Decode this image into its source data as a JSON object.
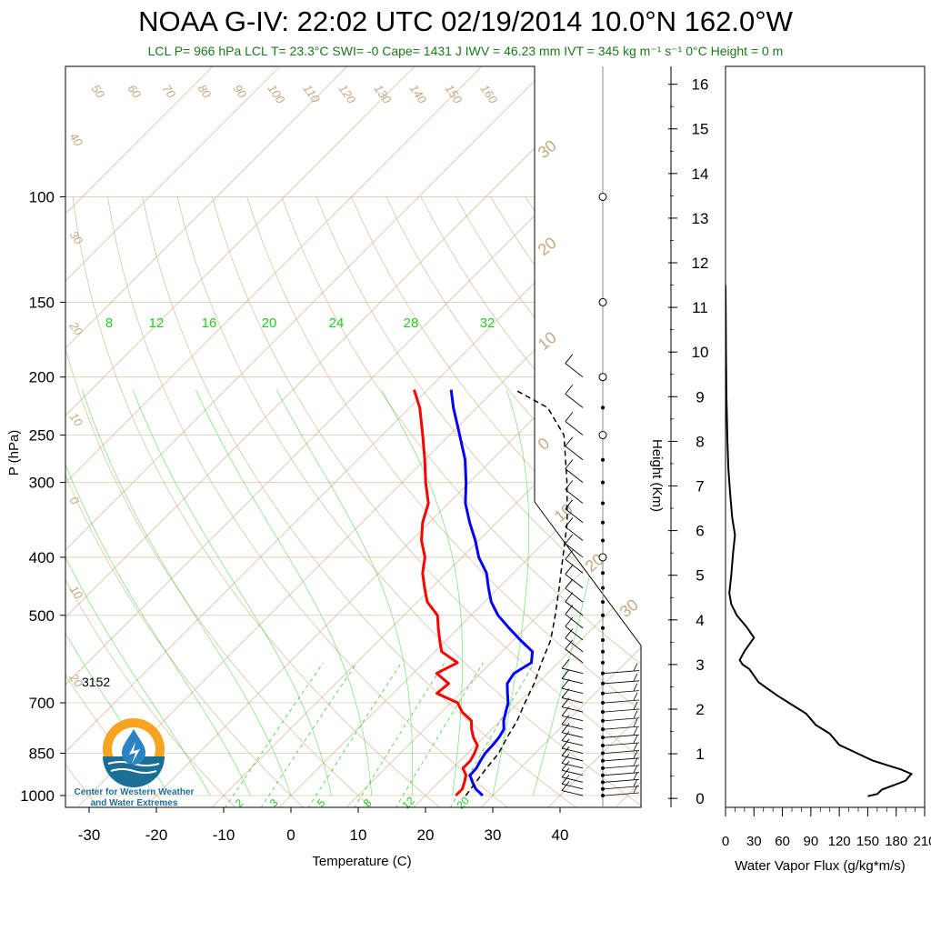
{
  "header": {
    "title": "NOAA G-IV: 22:02 UTC 02/19/2014  10.0°N 162.0°W",
    "subtitle": "LCL P= 966 hPa  LCL T= 23.3°C  SWI= -0  Cape= 1431 J  IWV = 46.23 mm  IVT = 345 kg m⁻¹ s⁻¹  0°C Height = 0 m"
  },
  "logo": {
    "text_line1": "Center for Western Weather",
    "text_line2": "and Water Extremes"
  },
  "colors": {
    "temperature": "#ff0000",
    "dewpoint": "#0000ff",
    "parcel": "#000000",
    "isotherm": "#d2b48c",
    "mixing_ratio": "#00cc00",
    "wind": "#000000",
    "flux": "#000000"
  },
  "chart_data": [
    {
      "type": "line",
      "subtype": "skew-T log-P",
      "xlabel": "Temperature (C)",
      "ylabel": "P (hPa)",
      "x_ticks": [
        -30,
        -20,
        -10,
        0,
        10,
        20,
        30,
        40
      ],
      "y_ticks": [
        100,
        150,
        200,
        250,
        300,
        400,
        500,
        700,
        850,
        1000
      ],
      "xlim": [
        -35,
        50
      ],
      "ylim": [
        1050,
        100
      ],
      "annotation": "3152",
      "dry_adiabat_labels": [
        "50",
        "60",
        "70",
        "80",
        "90",
        "100",
        "110",
        "120",
        "130",
        "140",
        "150",
        "160",
        "40",
        "30",
        "20",
        "10",
        "0",
        "10",
        "20"
      ],
      "mixing_ratio_top_labels": [
        "8",
        "12",
        "16",
        "20",
        "24",
        "28",
        "32"
      ],
      "mixing_ratio_bottom_labels": [
        "2",
        "3",
        "5",
        "8",
        "12",
        "20"
      ],
      "skewed_temp_labels": [
        "30",
        "20",
        "10",
        "0",
        "10",
        "20",
        "30"
      ],
      "series": [
        {
          "name": "",
          "points": [
            [
              24.5,
              1000
            ],
            [
              24.5,
              975
            ],
            [
              23.8,
              950
            ],
            [
              23.0,
              925
            ],
            [
              21.5,
              900
            ],
            [
              21.5,
              875
            ],
            [
              21.0,
              850
            ],
            [
              20.3,
              825
            ],
            [
              18.5,
              800
            ],
            [
              17.0,
              775
            ],
            [
              15.7,
              750
            ],
            [
              13.0,
              725
            ],
            [
              11.0,
              700
            ],
            [
              6.5,
              675
            ],
            [
              6.8,
              650
            ],
            [
              3.5,
              625
            ],
            [
              5.0,
              600
            ],
            [
              1.0,
              575
            ],
            [
              -1.0,
              550
            ],
            [
              -3.0,
              525
            ],
            [
              -5.0,
              500
            ],
            [
              -8.5,
              475
            ],
            [
              -11.0,
              450
            ],
            [
              -13.5,
              425
            ],
            [
              -15.5,
              400
            ],
            [
              -18.5,
              375
            ],
            [
              -21.0,
              350
            ],
            [
              -23.0,
              325
            ],
            [
              -26.5,
              300
            ],
            [
              -30.0,
              275
            ],
            [
              -34.0,
              250
            ],
            [
              -38.5,
              225
            ],
            [
              -42.0,
              210
            ]
          ]
        },
        {
          "name": "",
          "points": [
            [
              28.5,
              1000
            ],
            [
              26.5,
              975
            ],
            [
              25.0,
              950
            ],
            [
              23.6,
              925
            ],
            [
              23.5,
              900
            ],
            [
              23.0,
              875
            ],
            [
              22.6,
              850
            ],
            [
              22.5,
              825
            ],
            [
              22.3,
              800
            ],
            [
              21.8,
              775
            ],
            [
              20.5,
              750
            ],
            [
              19.5,
              725
            ],
            [
              18.5,
              700
            ],
            [
              17.0,
              675
            ],
            [
              15.5,
              650
            ],
            [
              15.0,
              625
            ],
            [
              16.0,
              600
            ],
            [
              14.5,
              575
            ],
            [
              11.0,
              550
            ],
            [
              7.5,
              525
            ],
            [
              4.0,
              500
            ],
            [
              1.0,
              475
            ],
            [
              -1.5,
              450
            ],
            [
              -4.0,
              425
            ],
            [
              -7.5,
              400
            ],
            [
              -10.5,
              375
            ],
            [
              -14.0,
              350
            ],
            [
              -17.5,
              325
            ],
            [
              -20.5,
              300
            ],
            [
              -24.0,
              275
            ],
            [
              -28.5,
              250
            ],
            [
              -33.5,
              225
            ],
            [
              -36.5,
              210
            ]
          ]
        },
        {
          "name": "",
          "points": [
            [
              26.0,
              1000
            ],
            [
              25.5,
              950
            ],
            [
              25.0,
              900
            ],
            [
              24.6,
              850
            ],
            [
              23.5,
              800
            ],
            [
              22.5,
              750
            ],
            [
              21.0,
              700
            ],
            [
              19.5,
              650
            ],
            [
              17.5,
              600
            ],
            [
              15.5,
              550
            ],
            [
              12.5,
              500
            ],
            [
              9.0,
              450
            ],
            [
              5.0,
              400
            ],
            [
              0.5,
              350
            ],
            [
              -5.5,
              300
            ],
            [
              -13.0,
              250
            ],
            [
              -19.5,
              225
            ],
            [
              -27.0,
              210
            ]
          ]
        }
      ],
      "wind_barb_pressures": [
        1000,
        975,
        950,
        925,
        900,
        875,
        850,
        825,
        800,
        775,
        750,
        725,
        700,
        675,
        650,
        625,
        600,
        575,
        550,
        525,
        500,
        475,
        450,
        425,
        400,
        375,
        350,
        325,
        300,
        275,
        250,
        225,
        200
      ]
    },
    {
      "type": "line",
      "xlabel": "Water Vapor Flux (g/kg*m/s)",
      "ylabel": "Height (Km)",
      "x_ticks": [
        0,
        30,
        60,
        90,
        120,
        150,
        180,
        210
      ],
      "y_ticks": [
        0,
        1,
        2,
        3,
        4,
        5,
        6,
        7,
        8,
        9,
        10,
        11,
        12,
        13,
        14,
        15,
        16
      ],
      "xlim": [
        0,
        210
      ],
      "ylim": [
        -0.2,
        16.4
      ],
      "series": [
        {
          "name": "",
          "points": [
            [
              150,
              0.05
            ],
            [
              160,
              0.1
            ],
            [
              165,
              0.2
            ],
            [
              178,
              0.3
            ],
            [
              190,
              0.4
            ],
            [
              196,
              0.55
            ],
            [
              185,
              0.65
            ],
            [
              170,
              0.75
            ],
            [
              155,
              0.85
            ],
            [
              140,
              1.0
            ],
            [
              120,
              1.2
            ],
            [
              110,
              1.45
            ],
            [
              95,
              1.65
            ],
            [
              85,
              1.9
            ],
            [
              70,
              2.1
            ],
            [
              55,
              2.3
            ],
            [
              45,
              2.45
            ],
            [
              35,
              2.6
            ],
            [
              30,
              2.75
            ],
            [
              25,
              2.9
            ],
            [
              18,
              3.0
            ],
            [
              15,
              3.1
            ],
            [
              20,
              3.3
            ],
            [
              30,
              3.6
            ],
            [
              22,
              3.85
            ],
            [
              12,
              4.1
            ],
            [
              6,
              4.35
            ],
            [
              4,
              4.6
            ],
            [
              6,
              5.0
            ],
            [
              8,
              5.5
            ],
            [
              10,
              5.9
            ],
            [
              7,
              6.3
            ],
            [
              5,
              6.8
            ],
            [
              3,
              7.4
            ],
            [
              2,
              8.0
            ],
            [
              1,
              9.0
            ],
            [
              0.5,
              10.0
            ],
            [
              0.2,
              11.0
            ],
            [
              0,
              11.5
            ]
          ]
        }
      ]
    }
  ]
}
